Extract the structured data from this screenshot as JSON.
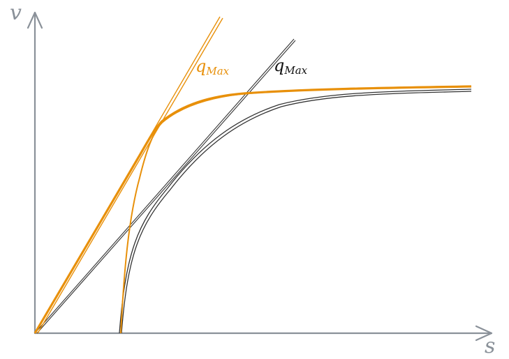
{
  "axes": {
    "x_label": "s",
    "y_label": "v",
    "color": "#8a9199"
  },
  "labels": {
    "orange_main": "q",
    "orange_sub": "Max",
    "black_main": "q",
    "black_sub": "Max"
  },
  "colors": {
    "orange": "#e8900a",
    "black": "#333333"
  }
}
